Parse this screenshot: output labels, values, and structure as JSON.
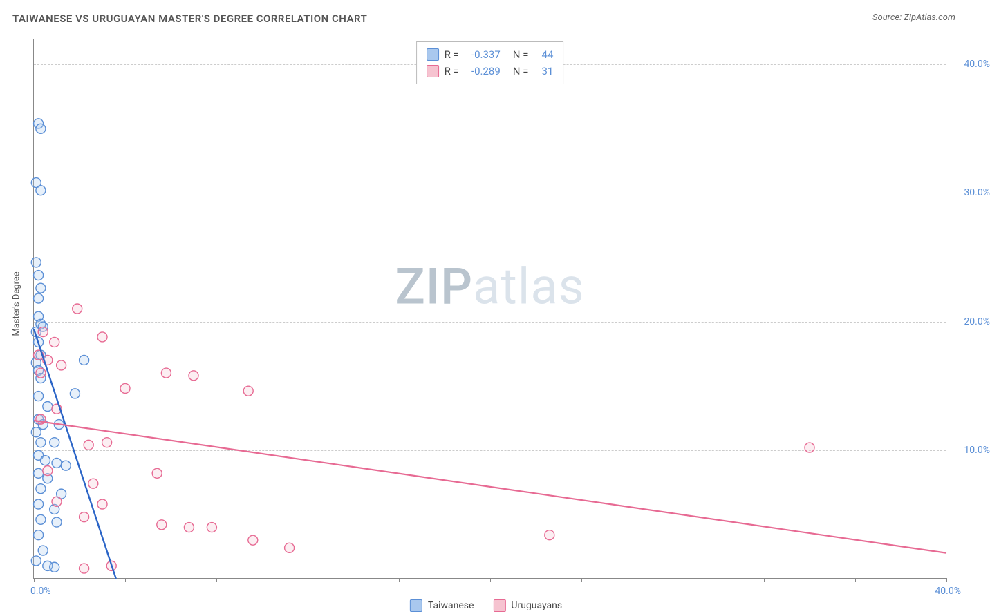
{
  "title": "TAIWANESE VS URUGUAYAN MASTER'S DEGREE CORRELATION CHART",
  "source": "Source: ZipAtlas.com",
  "watermark_bold": "ZIP",
  "watermark_light": "atlas",
  "y_axis_label": "Master's Degree",
  "chart": {
    "type": "scatter",
    "background_color": "#ffffff",
    "grid_color": "#cccccc",
    "axis_color": "#888888",
    "tick_label_color": "#5b8fd6",
    "title_color": "#555555",
    "title_fontsize": 15,
    "tick_fontsize": 14,
    "xlim": [
      0,
      40
    ],
    "ylim": [
      0,
      42
    ],
    "y_ticks": [
      10,
      20,
      30,
      40
    ],
    "y_tick_labels": [
      "10.0%",
      "20.0%",
      "30.0%",
      "40.0%"
    ],
    "x_ticks": [
      0,
      20,
      40
    ],
    "x_tick_pos_left": "0.0%",
    "x_tick_pos_right": "40.0%",
    "marker_radius": 7,
    "marker_stroke_width": 1.4,
    "fill_opacity": 0.28,
    "trend_line_width_blue": 2.4,
    "trend_line_width_pink": 2.2,
    "series": [
      {
        "name": "Taiwanese",
        "color_fill": "#a9c8ee",
        "color_stroke": "#5b8fd6",
        "R_label": "R =",
        "R": "-0.337",
        "N_label": "N =",
        "N": "44",
        "trend": {
          "x1": 0,
          "y1": 19.4,
          "x2": 3.6,
          "y2": 0
        },
        "points": [
          [
            0.2,
            35.4
          ],
          [
            0.3,
            35.0
          ],
          [
            0.1,
            30.8
          ],
          [
            0.3,
            30.2
          ],
          [
            0.1,
            24.6
          ],
          [
            0.2,
            23.6
          ],
          [
            0.3,
            22.6
          ],
          [
            0.2,
            21.8
          ],
          [
            0.2,
            20.4
          ],
          [
            0.3,
            19.8
          ],
          [
            0.1,
            19.2
          ],
          [
            0.4,
            19.6
          ],
          [
            0.2,
            18.4
          ],
          [
            2.2,
            17.0
          ],
          [
            0.3,
            17.4
          ],
          [
            0.1,
            16.8
          ],
          [
            0.2,
            16.2
          ],
          [
            0.3,
            15.6
          ],
          [
            0.2,
            14.2
          ],
          [
            1.8,
            14.4
          ],
          [
            0.6,
            13.4
          ],
          [
            0.2,
            12.4
          ],
          [
            0.4,
            12.0
          ],
          [
            1.1,
            12.0
          ],
          [
            0.1,
            11.4
          ],
          [
            0.3,
            10.6
          ],
          [
            0.9,
            10.6
          ],
          [
            0.2,
            9.6
          ],
          [
            0.5,
            9.2
          ],
          [
            1.0,
            9.0
          ],
          [
            1.4,
            8.8
          ],
          [
            0.2,
            8.2
          ],
          [
            0.6,
            7.8
          ],
          [
            0.3,
            7.0
          ],
          [
            1.2,
            6.6
          ],
          [
            0.2,
            5.8
          ],
          [
            0.9,
            5.4
          ],
          [
            0.3,
            4.6
          ],
          [
            1.0,
            4.4
          ],
          [
            0.2,
            3.4
          ],
          [
            0.1,
            1.4
          ],
          [
            0.4,
            2.2
          ],
          [
            0.6,
            1.0
          ],
          [
            0.9,
            0.9
          ]
        ]
      },
      {
        "name": "Uruguayans",
        "color_fill": "#f6c3d0",
        "color_stroke": "#e76a93",
        "R_label": "R =",
        "R": "-0.289",
        "N_label": "N =",
        "N": "31",
        "trend": {
          "x1": 0,
          "y1": 12.3,
          "x2": 40,
          "y2": 2.0
        },
        "points": [
          [
            1.9,
            21.0
          ],
          [
            0.4,
            19.2
          ],
          [
            3.0,
            18.8
          ],
          [
            0.9,
            18.4
          ],
          [
            0.2,
            17.4
          ],
          [
            0.6,
            17.0
          ],
          [
            1.2,
            16.6
          ],
          [
            0.3,
            16.0
          ],
          [
            5.8,
            16.0
          ],
          [
            7.0,
            15.8
          ],
          [
            9.4,
            14.6
          ],
          [
            4.0,
            14.8
          ],
          [
            1.0,
            13.2
          ],
          [
            0.3,
            12.4
          ],
          [
            2.4,
            10.4
          ],
          [
            3.2,
            10.6
          ],
          [
            34.0,
            10.2
          ],
          [
            0.6,
            8.4
          ],
          [
            5.4,
            8.2
          ],
          [
            2.6,
            7.4
          ],
          [
            1.0,
            6.0
          ],
          [
            3.0,
            5.8
          ],
          [
            2.2,
            4.8
          ],
          [
            5.6,
            4.2
          ],
          [
            6.8,
            4.0
          ],
          [
            7.8,
            4.0
          ],
          [
            11.2,
            2.4
          ],
          [
            9.6,
            3.0
          ],
          [
            22.6,
            3.4
          ],
          [
            3.4,
            1.0
          ],
          [
            2.2,
            0.8
          ]
        ]
      }
    ]
  },
  "legend_bottom": [
    {
      "label": "Taiwanese",
      "fill": "#a9c8ee",
      "stroke": "#5b8fd6"
    },
    {
      "label": "Uruguayans",
      "fill": "#f6c3d0",
      "stroke": "#e76a93"
    }
  ]
}
